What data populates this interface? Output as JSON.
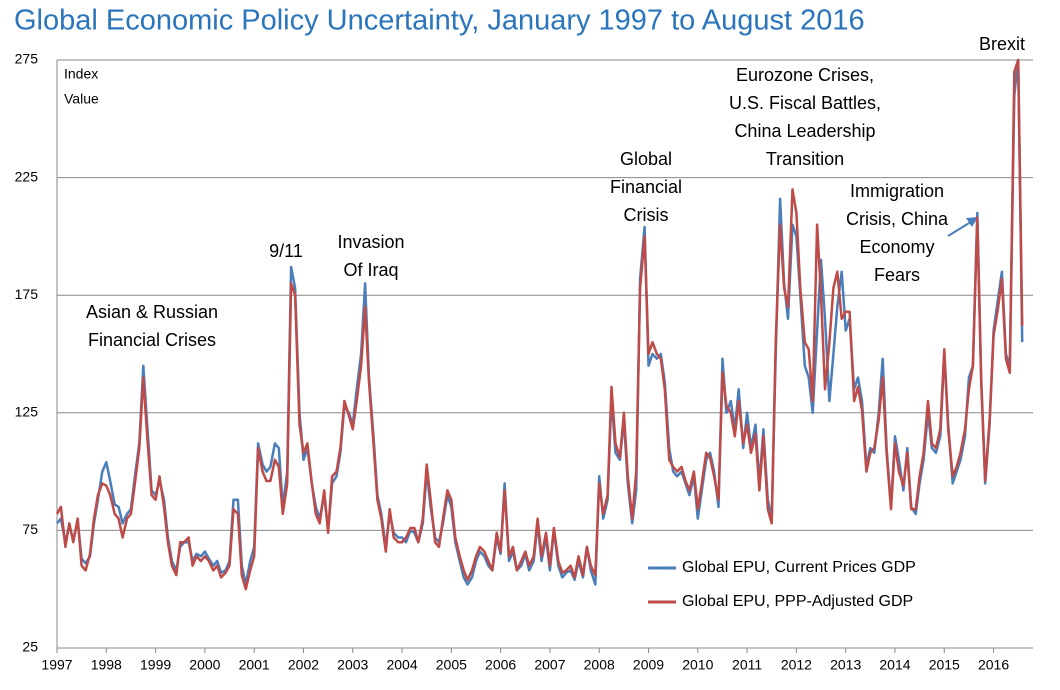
{
  "chart_data": {
    "type": "line",
    "title": "Global Economic Policy Uncertainty, January 1997 to August 2016",
    "y_label": [
      "Index",
      "Value"
    ],
    "annotations": [
      {
        "lines": [
          "Asian & Russian",
          "Financial Crises"
        ]
      },
      {
        "lines": [
          "9/11"
        ]
      },
      {
        "lines": [
          "Invasion",
          "Of Iraq"
        ]
      },
      {
        "lines": [
          "Global",
          "Financial",
          "Crisis"
        ]
      },
      {
        "lines": [
          "Eurozone Crises,",
          "U.S. Fiscal Battles,",
          "China Leadership",
          "Transition"
        ]
      },
      {
        "lines": [
          "Immigration",
          "Crisis, China",
          "Economy",
          "Fears"
        ]
      },
      {
        "lines": [
          "Brexit"
        ]
      }
    ],
    "xlim": [
      1997,
      2016.8
    ],
    "xticks": [
      1997,
      1998,
      1999,
      2000,
      2001,
      2002,
      2003,
      2004,
      2005,
      2006,
      2007,
      2008,
      2009,
      2010,
      2011,
      2012,
      2013,
      2014,
      2015,
      2016
    ],
    "ylim": [
      25,
      275
    ],
    "yticks": [
      25,
      75,
      125,
      175,
      225,
      275
    ],
    "grid": true,
    "legend": "lower-right",
    "x": [
      1997.0,
      1997.08,
      1997.17,
      1997.25,
      1997.33,
      1997.42,
      1997.5,
      1997.58,
      1997.67,
      1997.75,
      1997.83,
      1997.92,
      1998.0,
      1998.08,
      1998.17,
      1998.25,
      1998.33,
      1998.42,
      1998.5,
      1998.58,
      1998.67,
      1998.75,
      1998.83,
      1998.92,
      1999.0,
      1999.08,
      1999.17,
      1999.25,
      1999.33,
      1999.42,
      1999.5,
      1999.58,
      1999.67,
      1999.75,
      1999.83,
      1999.92,
      2000.0,
      2000.08,
      2000.17,
      2000.25,
      2000.33,
      2000.42,
      2000.5,
      2000.58,
      2000.67,
      2000.75,
      2000.83,
      2000.92,
      2001.0,
      2001.08,
      2001.17,
      2001.25,
      2001.33,
      2001.42,
      2001.5,
      2001.58,
      2001.67,
      2001.75,
      2001.83,
      2001.92,
      2002.0,
      2002.08,
      2002.17,
      2002.25,
      2002.33,
      2002.42,
      2002.5,
      2002.58,
      2002.67,
      2002.75,
      2002.83,
      2002.92,
      2003.0,
      2003.08,
      2003.17,
      2003.25,
      2003.33,
      2003.42,
      2003.5,
      2003.58,
      2003.67,
      2003.75,
      2003.83,
      2003.92,
      2004.0,
      2004.08,
      2004.17,
      2004.25,
      2004.33,
      2004.42,
      2004.5,
      2004.58,
      2004.67,
      2004.75,
      2004.83,
      2004.92,
      2005.0,
      2005.08,
      2005.17,
      2005.25,
      2005.33,
      2005.42,
      2005.5,
      2005.58,
      2005.67,
      2005.75,
      2005.83,
      2005.92,
      2006.0,
      2006.08,
      2006.17,
      2006.25,
      2006.33,
      2006.42,
      2006.5,
      2006.58,
      2006.67,
      2006.75,
      2006.83,
      2006.92,
      2007.0,
      2007.08,
      2007.17,
      2007.25,
      2007.33,
      2007.42,
      2007.5,
      2007.58,
      2007.67,
      2007.75,
      2007.83,
      2007.92,
      2008.0,
      2008.08,
      2008.17,
      2008.25,
      2008.33,
      2008.42,
      2008.5,
      2008.58,
      2008.67,
      2008.75,
      2008.83,
      2008.92,
      2009.0,
      2009.08,
      2009.17,
      2009.25,
      2009.33,
      2009.42,
      2009.5,
      2009.58,
      2009.67,
      2009.75,
      2009.83,
      2009.92,
      2010.0,
      2010.08,
      2010.17,
      2010.25,
      2010.33,
      2010.42,
      2010.5,
      2010.58,
      2010.67,
      2010.75,
      2010.83,
      2010.92,
      2011.0,
      2011.08,
      2011.17,
      2011.25,
      2011.33,
      2011.42,
      2011.5,
      2011.58,
      2011.67,
      2011.75,
      2011.83,
      2011.92,
      2012.0,
      2012.08,
      2012.17,
      2012.25,
      2012.33,
      2012.42,
      2012.5,
      2012.58,
      2012.67,
      2012.75,
      2012.83,
      2012.92,
      2013.0,
      2013.08,
      2013.17,
      2013.25,
      2013.33,
      2013.42,
      2013.5,
      2013.58,
      2013.67,
      2013.75,
      2013.83,
      2013.92,
      2014.0,
      2014.08,
      2014.17,
      2014.25,
      2014.33,
      2014.42,
      2014.5,
      2014.58,
      2014.67,
      2014.75,
      2014.83,
      2014.92,
      2015.0,
      2015.08,
      2015.17,
      2015.25,
      2015.33,
      2015.42,
      2015.5,
      2015.58,
      2015.67,
      2015.75,
      2015.83,
      2015.92,
      2016.0,
      2016.08,
      2016.17,
      2016.25,
      2016.33,
      2016.42,
      2016.5,
      2016.58
    ],
    "series": [
      {
        "name": "Global EPU, Current Prices GDP",
        "color": "#4a7ebb",
        "values": [
          78,
          80,
          70,
          77,
          71,
          79,
          63,
          61,
          64,
          78,
          88,
          100,
          104,
          96,
          86,
          85,
          78,
          82,
          84,
          98,
          112,
          145,
          120,
          92,
          90,
          96,
          88,
          72,
          62,
          58,
          68,
          70,
          70,
          62,
          65,
          64,
          66,
          63,
          60,
          62,
          57,
          58,
          62,
          88,
          88,
          60,
          52,
          62,
          68,
          112,
          103,
          100,
          102,
          112,
          110,
          85,
          100,
          187,
          178,
          125,
          105,
          110,
          95,
          85,
          80,
          90,
          75,
          95,
          98,
          108,
          128,
          125,
          120,
          135,
          150,
          180,
          140,
          115,
          90,
          82,
          68,
          82,
          74,
          72,
          72,
          70,
          75,
          74,
          70,
          78,
          100,
          85,
          72,
          70,
          78,
          90,
          85,
          70,
          62,
          55,
          52,
          55,
          62,
          66,
          64,
          60,
          58,
          72,
          65,
          95,
          62,
          66,
          58,
          60,
          65,
          58,
          62,
          78,
          62,
          72,
          58,
          75,
          60,
          55,
          57,
          58,
          54,
          62,
          55,
          68,
          58,
          52,
          98,
          80,
          88,
          132,
          108,
          105,
          122,
          95,
          78,
          92,
          182,
          204,
          145,
          150,
          148,
          150,
          138,
          110,
          100,
          98,
          100,
          95,
          90,
          98,
          80,
          92,
          105,
          108,
          100,
          85,
          148,
          125,
          130,
          118,
          135,
          110,
          125,
          110,
          120,
          95,
          118,
          88,
          80,
          150,
          216,
          180,
          165,
          205,
          200,
          175,
          145,
          140,
          125,
          160,
          190,
          165,
          130,
          150,
          170,
          185,
          160,
          165,
          135,
          140,
          130,
          102,
          110,
          108,
          125,
          148,
          110,
          85,
          115,
          105,
          92,
          110,
          85,
          82,
          95,
          105,
          125,
          110,
          108,
          115,
          150,
          120,
          95,
          100,
          105,
          115,
          140,
          145,
          210,
          140,
          95,
          120,
          160,
          172,
          185,
          150,
          145,
          260,
          275,
          155
        ]
      },
      {
        "name": "Global EPU, PPP-Adjusted GDP",
        "color": "#be4b48",
        "values": [
          82,
          85,
          68,
          78,
          70,
          80,
          60,
          58,
          65,
          80,
          90,
          95,
          94,
          90,
          82,
          80,
          72,
          80,
          82,
          95,
          110,
          140,
          115,
          90,
          88,
          98,
          85,
          70,
          60,
          56,
          70,
          70,
          72,
          60,
          64,
          62,
          64,
          62,
          58,
          60,
          55,
          57,
          60,
          84,
          82,
          56,
          50,
          58,
          64,
          110,
          100,
          96,
          96,
          105,
          102,
          82,
          95,
          180,
          175,
          120,
          108,
          112,
          95,
          82,
          78,
          92,
          74,
          98,
          100,
          110,
          130,
          124,
          118,
          130,
          145,
          170,
          138,
          112,
          88,
          80,
          66,
          84,
          72,
          70,
          70,
          72,
          76,
          76,
          70,
          80,
          103,
          88,
          70,
          68,
          80,
          92,
          88,
          72,
          64,
          58,
          54,
          58,
          64,
          68,
          66,
          62,
          58,
          74,
          66,
          92,
          64,
          68,
          58,
          62,
          66,
          60,
          64,
          80,
          64,
          74,
          60,
          76,
          62,
          57,
          58,
          60,
          55,
          64,
          56,
          68,
          60,
          56,
          95,
          82,
          90,
          136,
          112,
          106,
          125,
          98,
          80,
          100,
          178,
          200,
          150,
          155,
          150,
          148,
          135,
          105,
          102,
          100,
          102,
          96,
          92,
          100,
          84,
          95,
          108,
          106,
          98,
          88,
          142,
          128,
          125,
          115,
          130,
          112,
          120,
          108,
          116,
          92,
          115,
          84,
          78,
          155,
          205,
          178,
          170,
          220,
          210,
          178,
          155,
          152,
          130,
          205,
          175,
          135,
          155,
          178,
          185,
          165,
          168,
          168,
          130,
          136,
          126,
          100,
          108,
          110,
          122,
          140,
          108,
          84,
          112,
          100,
          94,
          108,
          84,
          84,
          98,
          108,
          130,
          112,
          110,
          118,
          152,
          118,
          98,
          102,
          108,
          118,
          135,
          145,
          208,
          138,
          96,
          122,
          158,
          168,
          182,
          148,
          142,
          270,
          275,
          162
        ]
      }
    ]
  }
}
